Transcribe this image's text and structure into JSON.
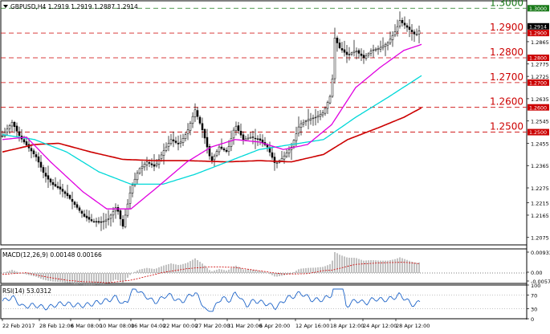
{
  "symbol_header": "GBPUSD,H4  1.2919 1.2919 1.2887 1.2914",
  "macd_header": "MACD(12,26,9) 0.00148 0.00166",
  "rsi_header": "RSI(14) 53.0312",
  "price_scale": [
    "1.2865",
    "1.2775",
    "1.2725",
    "1.2635",
    "1.2545",
    "1.2455",
    "1.2365",
    "1.2275",
    "1.2215",
    "1.2165",
    "1.2075"
  ],
  "top_scale_label": "1.3000",
  "current_price": "1.2914",
  "levels": [
    {
      "label": "1.3000",
      "value": 1.3,
      "color": "#1a7a1a"
    },
    {
      "label": "1.2900",
      "value": 1.29,
      "color": "#cc0000"
    },
    {
      "label": "1.2800",
      "value": 1.28,
      "color": "#cc0000"
    },
    {
      "label": "1.2700",
      "value": 1.27,
      "color": "#cc0000"
    },
    {
      "label": "1.2600",
      "value": 1.26,
      "color": "#cc0000"
    },
    {
      "label": "1.2500",
      "value": 1.25,
      "color": "#cc0000"
    }
  ],
  "macd_scale": [
    "0.00933",
    "0.00",
    "-0.00578"
  ],
  "rsi_scale": [
    "100",
    "70",
    "30",
    "0"
  ],
  "x_labels": [
    "22 Feb 2017",
    "28 Feb 12:00",
    "6 Mar 08:00",
    "10 Mar 08:00",
    "16 Mar 04:00",
    "22 Mar 00:00",
    "27 Mar 20:00",
    "31 Mar 20:00",
    "6 Apr 20:00",
    "12 Apr 16:00",
    "18 Apr 12:00",
    "24 Apr 12:00",
    "28 Apr 12:00"
  ],
  "chart_data": {
    "type": "candlestick",
    "close_path": [
      [
        0,
        1.2485
      ],
      [
        12,
        1.254
      ],
      [
        22,
        1.248
      ],
      [
        32,
        1.244
      ],
      [
        42,
        1.24
      ],
      [
        52,
        1.233
      ],
      [
        62,
        1.229
      ],
      [
        72,
        1.227
      ],
      [
        82,
        1.224
      ],
      [
        92,
        1.22
      ],
      [
        102,
        1.216
      ],
      [
        112,
        1.214
      ],
      [
        122,
        1.2135
      ],
      [
        132,
        1.215
      ],
      [
        142,
        1.22
      ],
      [
        150,
        1.212
      ],
      [
        160,
        1.227
      ],
      [
        170,
        1.235
      ],
      [
        180,
        1.238
      ],
      [
        190,
        1.236
      ],
      [
        200,
        1.242
      ],
      [
        210,
        1.247
      ],
      [
        220,
        1.245
      ],
      [
        230,
        1.25
      ],
      [
        240,
        1.259
      ],
      [
        250,
        1.25
      ],
      [
        260,
        1.238
      ],
      [
        270,
        1.244
      ],
      [
        280,
        1.242
      ],
      [
        290,
        1.253
      ],
      [
        300,
        1.247
      ],
      [
        310,
        1.248
      ],
      [
        320,
        1.247
      ],
      [
        330,
        1.244
      ],
      [
        340,
        1.237
      ],
      [
        350,
        1.24
      ],
      [
        360,
        1.244
      ],
      [
        370,
        1.253
      ],
      [
        380,
        1.255
      ],
      [
        390,
        1.256
      ],
      [
        400,
        1.258
      ],
      [
        410,
        1.266
      ],
      [
        414,
        1.288
      ],
      [
        420,
        1.284
      ],
      [
        430,
        1.281
      ],
      [
        440,
        1.283
      ],
      [
        450,
        1.28
      ],
      [
        460,
        1.283
      ],
      [
        470,
        1.284
      ],
      [
        480,
        1.286
      ],
      [
        490,
        1.291
      ],
      [
        495,
        1.295
      ],
      [
        505,
        1.292
      ],
      [
        515,
        1.289
      ],
      [
        520,
        1.2914
      ]
    ],
    "ma_fast_path": [
      [
        0,
        1.247
      ],
      [
        30,
        1.248
      ],
      [
        60,
        1.238
      ],
      [
        100,
        1.226
      ],
      [
        130,
        1.219
      ],
      [
        160,
        1.219
      ],
      [
        190,
        1.227
      ],
      [
        230,
        1.238
      ],
      [
        260,
        1.244
      ],
      [
        290,
        1.247
      ],
      [
        320,
        1.246
      ],
      [
        350,
        1.243
      ],
      [
        380,
        1.245
      ],
      [
        410,
        1.253
      ],
      [
        440,
        1.268
      ],
      [
        470,
        1.276
      ],
      [
        500,
        1.283
      ],
      [
        523,
        1.2855
      ]
    ],
    "ma_mid_path": [
      [
        0,
        1.249
      ],
      [
        40,
        1.247
      ],
      [
        80,
        1.242
      ],
      [
        120,
        1.234
      ],
      [
        160,
        1.229
      ],
      [
        200,
        1.229
      ],
      [
        240,
        1.233
      ],
      [
        280,
        1.238
      ],
      [
        320,
        1.243
      ],
      [
        360,
        1.245
      ],
      [
        400,
        1.247
      ],
      [
        440,
        1.256
      ],
      [
        480,
        1.264
      ],
      [
        523,
        1.273
      ]
    ],
    "ma_slow_path": [
      [
        0,
        1.242
      ],
      [
        40,
        1.245
      ],
      [
        70,
        1.2455
      ],
      [
        110,
        1.242
      ],
      [
        150,
        1.239
      ],
      [
        190,
        1.2385
      ],
      [
        230,
        1.2385
      ],
      [
        280,
        1.238
      ],
      [
        320,
        1.2385
      ],
      [
        360,
        1.238
      ],
      [
        400,
        1.241
      ],
      [
        430,
        1.247
      ],
      [
        470,
        1.252
      ],
      [
        500,
        1.256
      ],
      [
        523,
        1.26
      ]
    ],
    "ylim": [
      1.2045,
      1.303
    ]
  },
  "colors": {
    "candle": "#000000",
    "ma_fast": "#e000e0",
    "ma_mid": "#00d8d8",
    "ma_slow": "#cc0000",
    "macd_hist": "#9a9a9a",
    "macd_signal": "#cc0000",
    "rsi": "#1e64c8"
  }
}
